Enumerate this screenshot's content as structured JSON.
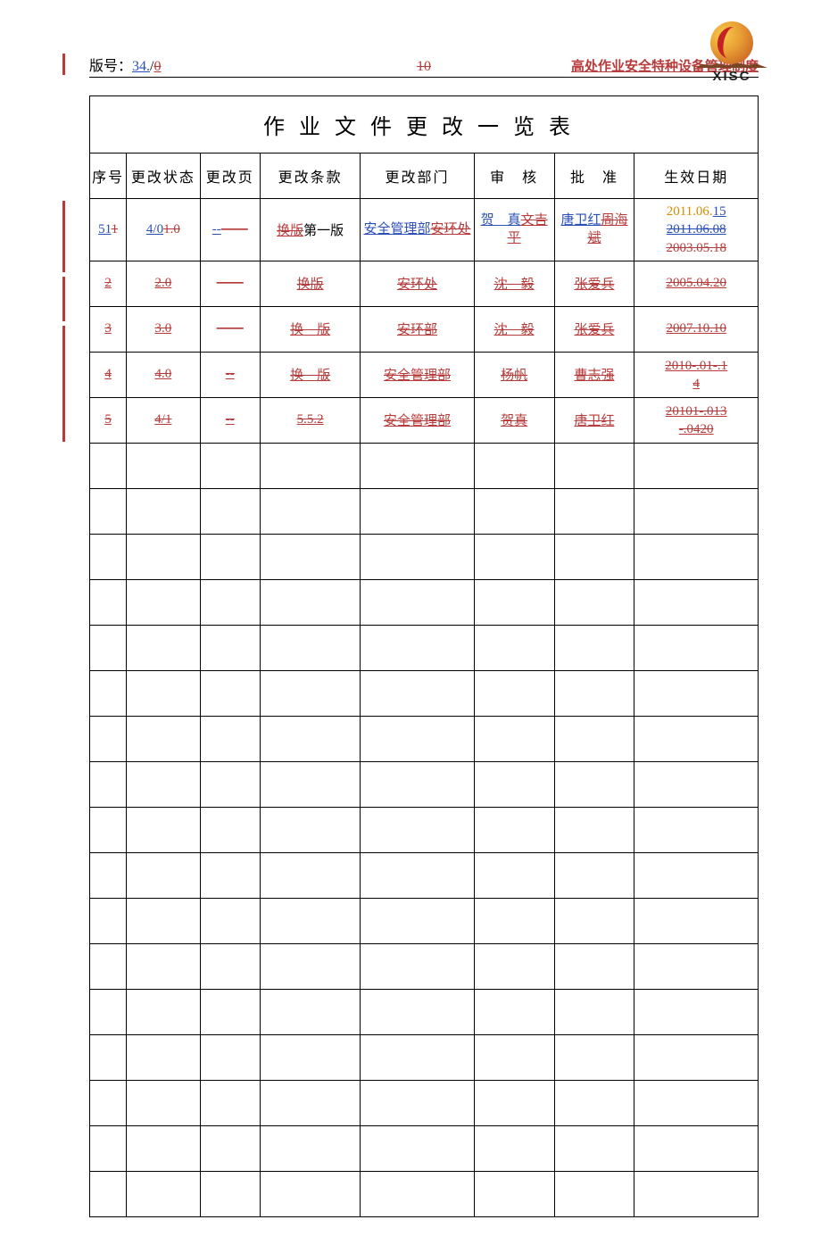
{
  "header": {
    "version_label": "版号：",
    "version_ins1": "34.",
    "version_slash": "/",
    "version_ins2": "0",
    "page_num_del": "10",
    "right_title": "高处作业安全特种设备管理制度",
    "logo_text": "XISC"
  },
  "table": {
    "title": "作业文件更改一览表",
    "headers": {
      "seq": "序号",
      "status": "更改状态",
      "page": "更改页",
      "clause": "更改条款",
      "dept": "更改部门",
      "reviewer": "审　核",
      "approver": "批　准",
      "date": "生效日期"
    },
    "rows": [
      {
        "seq_ins": "51",
        "seq_del": "1",
        "status_ins": "4/0",
        "status_del": "1.0",
        "page_ins": "--",
        "page_del": "——",
        "clause_del1": "换版",
        "clause_plain": "第一版",
        "dept_ins": "安全管理部",
        "dept_del": "安环处",
        "rev_ins": "贺　真",
        "rev_del": "文吉平",
        "appr_ins": "唐卫红",
        "appr_del": "周海斌",
        "date_line1_plain": "2011.06.",
        "date_line1_ins": "15",
        "date_line2_del": "2011.06.08",
        "date_line3_del": "2003.05.18"
      },
      {
        "seq_del": "2",
        "status_del": "2.0",
        "page_del": "——",
        "clause_del": "换版",
        "dept_del": "安环处",
        "rev_del": "沈　毅",
        "appr_del": "张爱兵",
        "date_del": "2005.04.20"
      },
      {
        "seq_del": "3",
        "status_del": "3.0",
        "page_del": "——",
        "clause_del": "换　版",
        "dept_del": "安环部",
        "rev_del": "沈　毅",
        "appr_del": "张爱兵",
        "date_del": "2007.10.10"
      },
      {
        "seq_del": "4",
        "status_del": "4.0",
        "page_del": "--",
        "clause_del": "换　版",
        "dept_del": "安全管理部",
        "rev_del": "杨帆",
        "appr_del": "曹志强",
        "date_del_line1": "2010-.01-.1",
        "date_del_line2": "4"
      },
      {
        "seq_del": "5",
        "status_del": "4/1",
        "page_del": "--",
        "clause_del": "5.5.2",
        "dept_del": "安全管理部",
        "rev_del": "贺真",
        "appr_del": "唐卫红",
        "date_del_line1": "20101-.013",
        "date_del_line2": "-.0420"
      }
    ],
    "blank_rows": 17
  },
  "colors": {
    "insert": "#2a4fb8",
    "delete": "#b83b3b",
    "border": "#000000",
    "mark": "#b83b3b"
  }
}
